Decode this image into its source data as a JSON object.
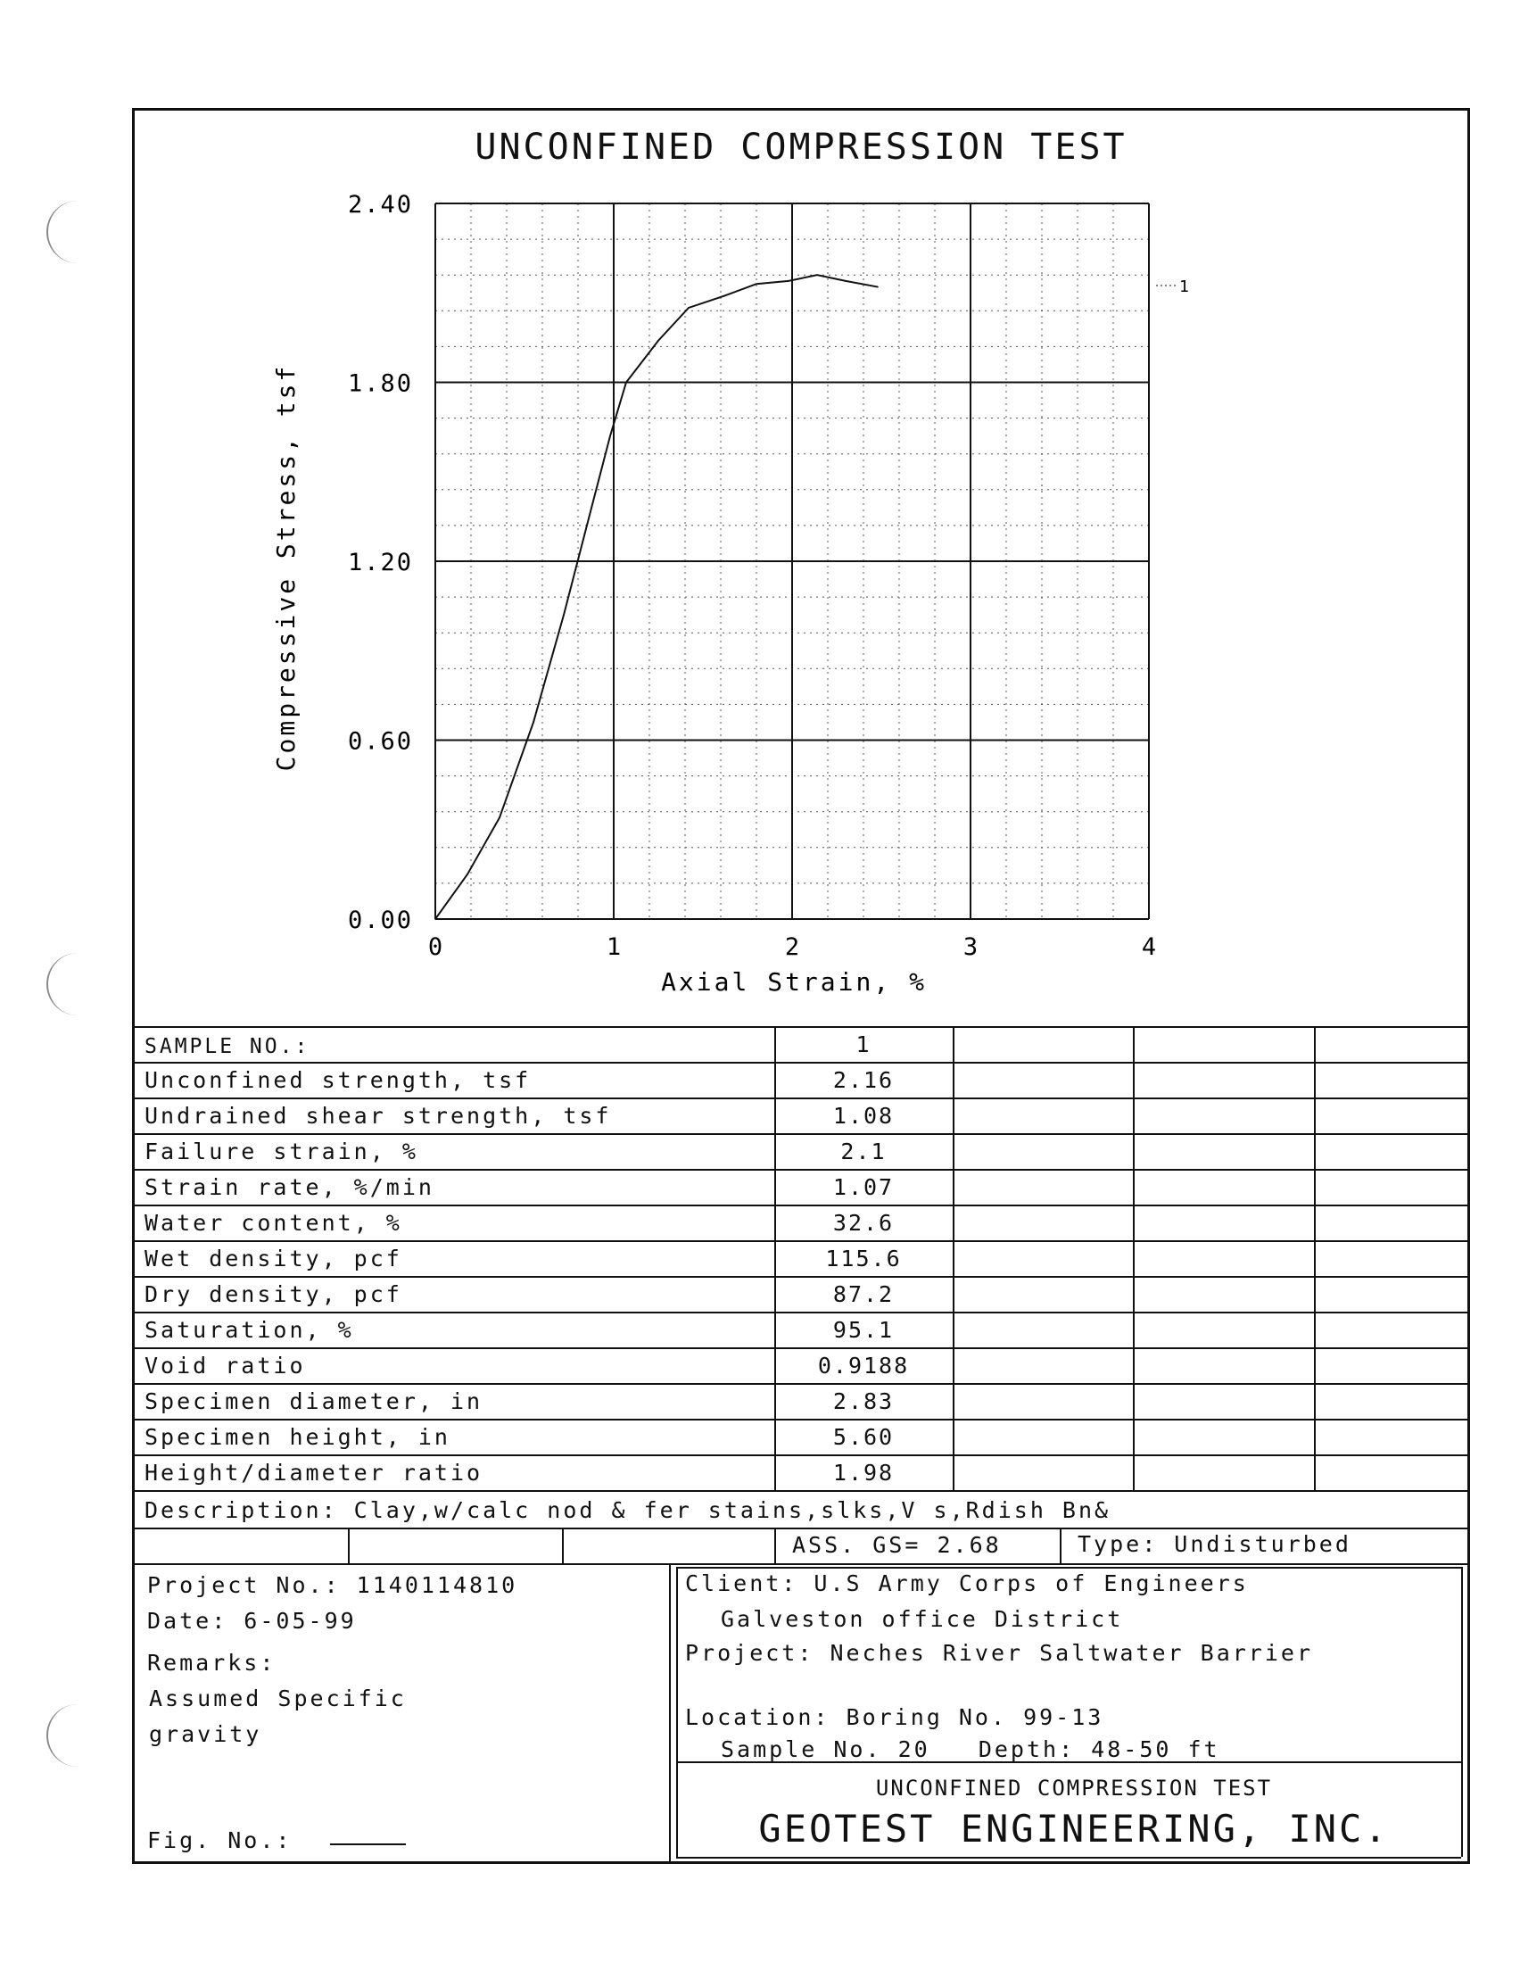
{
  "chart_data": {
    "type": "line",
    "title": "UNCONFINED COMPRESSION TEST",
    "xlabel": "Axial Strain, %",
    "ylabel": "Compressive Stress, tsf",
    "xlim": [
      0,
      4
    ],
    "ylim": [
      0,
      2.4
    ],
    "x_ticks": [
      "0",
      "1",
      "2",
      "3",
      "4"
    ],
    "y_ticks": [
      "0.00",
      "0.60",
      "1.20",
      "1.80",
      "2.40"
    ],
    "grid": true,
    "series": [
      {
        "name": "1",
        "x": [
          0,
          0.18,
          0.36,
          0.55,
          0.72,
          0.88,
          0.98,
          1.07,
          1.25,
          1.42,
          1.62,
          1.8,
          1.98,
          2.14,
          2.3,
          2.48
        ],
        "y": [
          0,
          0.15,
          0.34,
          0.66,
          1.02,
          1.39,
          1.62,
          1.8,
          1.94,
          2.05,
          2.09,
          2.13,
          2.14,
          2.16,
          2.14,
          2.12
        ]
      }
    ]
  },
  "table": {
    "header_label": "SAMPLE NO.:",
    "header_value": "1",
    "rows": [
      {
        "label": "Unconfined strength, tsf",
        "value": "2.16"
      },
      {
        "label": "Undrained shear strength, tsf",
        "value": "1.08"
      },
      {
        "label": "Failure strain, %",
        "value": "2.1"
      },
      {
        "label": "Strain rate, %/min",
        "value": "1.07"
      },
      {
        "label": "Water content, %",
        "value": "32.6"
      },
      {
        "label": "Wet density, pcf",
        "value": "115.6"
      },
      {
        "label": "Dry density, pcf",
        "value": "87.2"
      },
      {
        "label": "Saturation, %",
        "value": "95.1"
      },
      {
        "label": "Void ratio",
        "value": "0.9188"
      },
      {
        "label": "Specimen diameter, in",
        "value": "2.83"
      },
      {
        "label": "Specimen height, in",
        "value": "5.60"
      },
      {
        "label": "Height/diameter ratio",
        "value": "1.98"
      }
    ],
    "description": "Description: Clay,w/calc nod & fer stains,slks,V s,Rdish Bn&",
    "gs": "ASS. GS= 2.68",
    "type": "Type: Undisturbed"
  },
  "info": {
    "project_no": "Project No.: 1140114810",
    "date": "Date: 6-05-99",
    "remarks_label": "Remarks:",
    "remarks_1": "Assumed Specific",
    "remarks_2": "gravity",
    "fig_no": "Fig. No.:",
    "client": "Client: U.S Army Corps of Engineers",
    "client_2": "Galveston office District",
    "project": "Project: Neches River Saltwater Barrier",
    "location": "Location: Boring No. 99-13",
    "sample": "Sample No. 20   Depth: 48-50 ft",
    "footer_title": "UNCONFINED COMPRESSION TEST",
    "company": "GEOTEST ENGINEERING, INC."
  }
}
